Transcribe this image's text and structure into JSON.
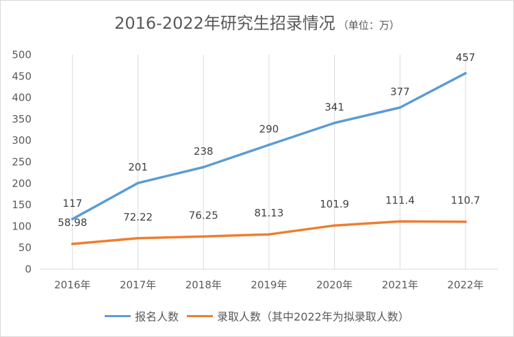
{
  "chart_data": {
    "type": "line",
    "title": "2016-2022年研究生招录情况",
    "subtitle": "（单位：万）",
    "categories": [
      "2016年",
      "2017年",
      "2018年",
      "2019年",
      "2020年",
      "2021年",
      "2022年"
    ],
    "series": [
      {
        "name": "报名人数",
        "color": "#5b9bd5",
        "values": [
          117,
          201,
          238,
          290,
          341,
          377,
          457
        ],
        "labels": [
          "117",
          "201",
          "238",
          "290",
          "341",
          "377",
          "457"
        ]
      },
      {
        "name": "录取人数（其中2022年为拟录取人数）",
        "color": "#ed7d31",
        "values": [
          58.98,
          72.22,
          76.25,
          81.13,
          101.9,
          111.4,
          110.7
        ],
        "labels": [
          "58.98",
          "72.22",
          "76.25",
          "81.13",
          "101.9",
          "111.4",
          "110.7"
        ]
      }
    ],
    "yticks": [
      "0",
      "50",
      "100",
      "150",
      "200",
      "250",
      "300",
      "350",
      "400",
      "450",
      "500"
    ],
    "ylim": [
      0,
      500
    ],
    "grid": "vertical",
    "legend": "bottom"
  }
}
